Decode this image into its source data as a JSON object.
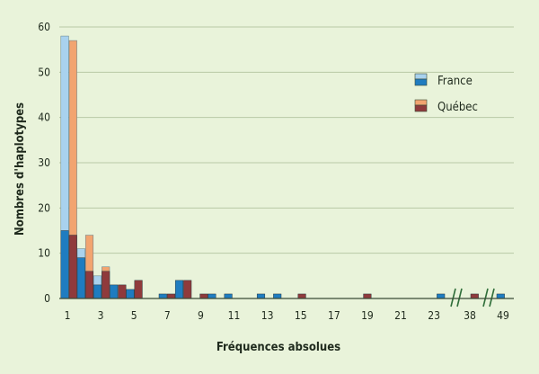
{
  "chart_data": {
    "type": "bar",
    "xlabel": "Fréquences absolues",
    "ylabel": "Nombres d'haplotypes",
    "ylim": [
      0,
      60
    ],
    "yticks": [
      0,
      10,
      20,
      30,
      40,
      50,
      60
    ],
    "xticks": [
      "1",
      "3",
      "5",
      "7",
      "9",
      "11",
      "13",
      "15",
      "17",
      "19",
      "21",
      "23",
      "38",
      "49"
    ],
    "axis_breaks": [
      "between 23 and 38",
      "between 38 and 49"
    ],
    "grid": "horizontal",
    "legend_position": "top-right",
    "colors": {
      "france_dark": "#1f7cc0",
      "france_light": "#a9d2ee",
      "quebec_dark": "#8f3a3c",
      "quebec_light": "#f2a470",
      "background": "#e9f3da",
      "grid": "#b9c8a6"
    },
    "series": [
      {
        "name": "France",
        "points": [
          {
            "x": "1",
            "value": 15,
            "light_value": 58
          },
          {
            "x": "2",
            "value": 9,
            "light_value": 11
          },
          {
            "x": "3",
            "value": 3,
            "light_value": 5
          },
          {
            "x": "4",
            "value": 3
          },
          {
            "x": "5",
            "value": 2
          },
          {
            "x": "7",
            "value": 1
          },
          {
            "x": "8",
            "value": 4
          },
          {
            "x": "10",
            "value": 1
          },
          {
            "x": "11",
            "value": 1
          },
          {
            "x": "13",
            "value": 1
          },
          {
            "x": "14",
            "value": 1
          },
          {
            "x": "24",
            "value": 1
          },
          {
            "x": "49",
            "value": 1
          }
        ]
      },
      {
        "name": "Québec",
        "points": [
          {
            "x": "1",
            "value": 14,
            "light_value": 57
          },
          {
            "x": "2",
            "value": 6,
            "light_value": 14
          },
          {
            "x": "3",
            "value": 6,
            "light_value": 7
          },
          {
            "x": "4",
            "value": 3
          },
          {
            "x": "5",
            "value": 4
          },
          {
            "x": "7",
            "value": 1
          },
          {
            "x": "8",
            "value": 4
          },
          {
            "x": "9",
            "value": 1
          },
          {
            "x": "15",
            "value": 1
          },
          {
            "x": "19",
            "value": 1
          },
          {
            "x": "38",
            "value": 1
          }
        ]
      }
    ]
  }
}
